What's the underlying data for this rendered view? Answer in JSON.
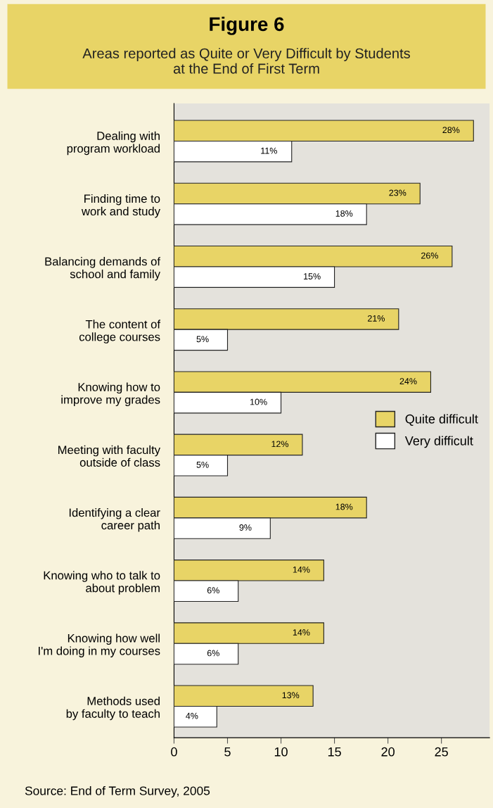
{
  "chart_data": {
    "type": "bar",
    "orientation": "horizontal",
    "title": "Figure 6",
    "subtitle": "Areas reported as Quite or Very Difficult by Students\nat the End of First Term",
    "categories": [
      "Dealing with\nprogram workload",
      "Finding time to\nwork and study",
      "Balancing demands of\nschool and family",
      "The content of\ncollege courses",
      "Knowing how to\nimprove my grades",
      "Meeting with faculty\noutside of class",
      "Identifying a clear\ncareer path",
      "Knowing who to talk to\nabout problem",
      "Knowing how well\nI'm doing in my courses",
      "Methods used\nby faculty to teach"
    ],
    "series": [
      {
        "name": "Quite difficult",
        "color": "#e8d466",
        "values": [
          28,
          23,
          26,
          21,
          24,
          12,
          18,
          14,
          14,
          13
        ],
        "value_labels": [
          "28%",
          "23%",
          "26%",
          "21%",
          "24%",
          "12%",
          "18%",
          "14%",
          "14%",
          "13%"
        ]
      },
      {
        "name": "Very difficult",
        "color": "#ffffff",
        "values": [
          11,
          18,
          15,
          5,
          10,
          5,
          9,
          6,
          6,
          4
        ],
        "value_labels": [
          "11%",
          "18%",
          "15%",
          "5%",
          "10%",
          "5%",
          "9%",
          "6%",
          "6%",
          "4%"
        ]
      }
    ],
    "xlim": [
      0,
      29.5
    ],
    "xticks": [
      0,
      5,
      10,
      15,
      20,
      25
    ],
    "grid": false,
    "legend": "right",
    "annotations": [
      "Source: End of Term Survey, 2005"
    ]
  }
}
